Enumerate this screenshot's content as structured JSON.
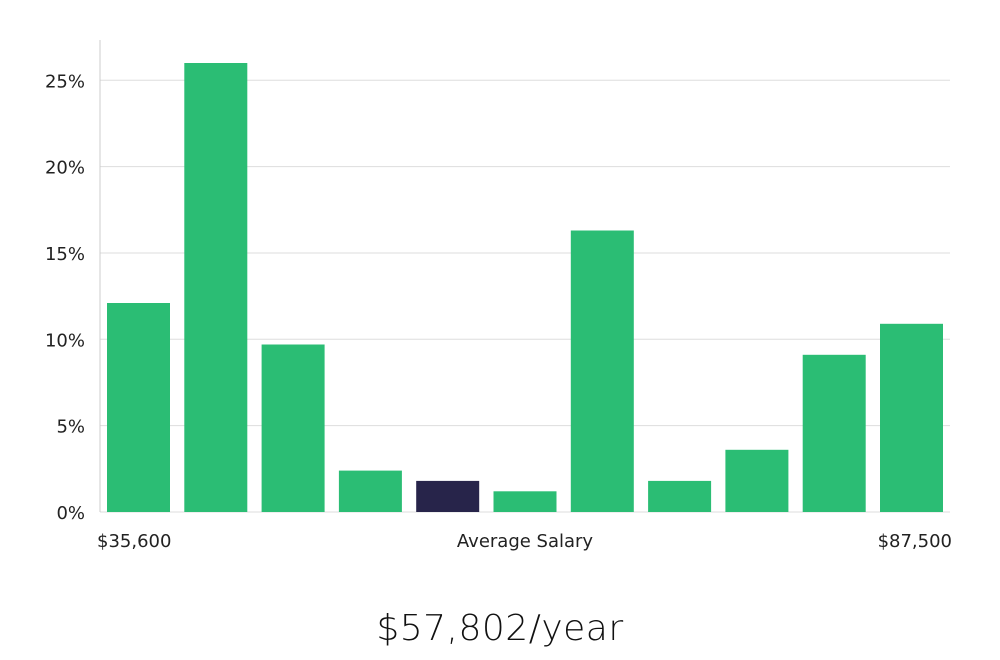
{
  "chart_data": {
    "type": "bar",
    "title": "",
    "xlabel": "Average Salary",
    "ylabel": "",
    "x_range_labels": {
      "min": "$35,600",
      "max": "$87,500"
    },
    "values": [
      12.1,
      26.0,
      9.7,
      2.4,
      1.8,
      1.2,
      16.3,
      1.8,
      3.6,
      9.1,
      10.9
    ],
    "highlight_index": 4,
    "ylim": [
      0,
      27
    ],
    "yticks": [
      0,
      5,
      10,
      15,
      20,
      25
    ],
    "ytick_labels": [
      "0%",
      "5%",
      "10%",
      "15%",
      "20%",
      "25%"
    ],
    "grid": true,
    "colors": {
      "bar": "#2bbd74",
      "highlight": "#27244a",
      "grid": "#dddddd",
      "axis": "#cccccc"
    }
  },
  "summary": {
    "salary": "$57,802/year"
  }
}
